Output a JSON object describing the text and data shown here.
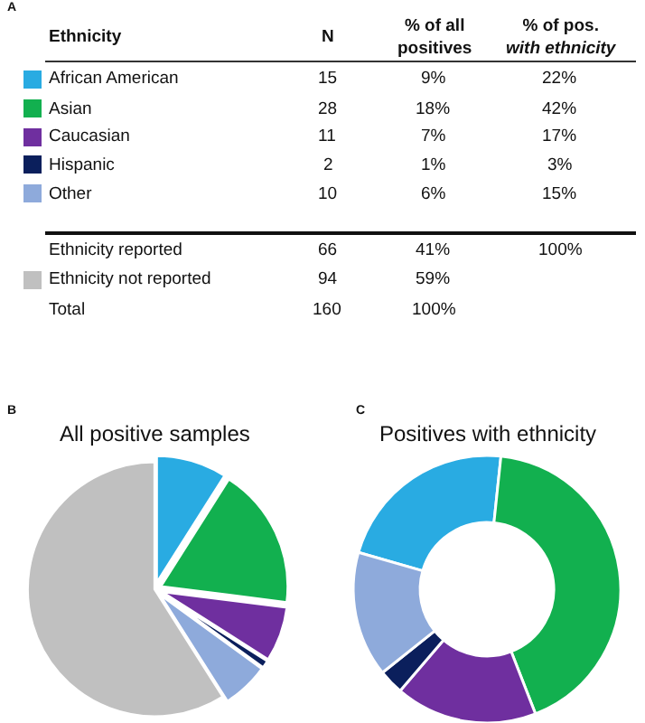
{
  "chart_data": [
    {
      "type": "other",
      "annotations": [
        "A",
        "Ethnicity",
        "N",
        "% of all\npositives",
        "% of pos.\nwith ethnicity",
        "15",
        "28",
        "11",
        "2",
        "10",
        "22%",
        "42%",
        "17%",
        "3%",
        "15%",
        "Ethnicity reported",
        "66",
        "41%",
        "100%",
        "94",
        "Total",
        "160",
        "100%"
      ]
    },
    {
      "type": "pie",
      "title": "All positive samples",
      "annotations": [
        "B"
      ],
      "legend": "left",
      "categories": [
        "African American",
        "Asian",
        "Caucasian",
        "Hispanic",
        "Other",
        "Ethnicity not reported"
      ],
      "values": [
        9,
        18,
        7,
        1,
        6,
        59
      ],
      "value_labels": [
        "9%",
        "18%",
        "7%",
        "1%",
        "6%",
        "59%"
      ],
      "colors": [
        "#29abe2",
        "#12b04f",
        "#6f2f9f",
        "#0b1f5c",
        "#8eaadb",
        "#c0c0c0"
      ]
    },
    {
      "type": "donut",
      "title": "Positives with ethnicity",
      "annotations": [
        "C"
      ],
      "categories": [
        null,
        null,
        null,
        null,
        null
      ],
      "values": [
        22,
        42,
        17,
        3,
        15
      ],
      "colors": [
        "#29abe2",
        "#12b04f",
        "#6f2f9f",
        "#0b1f5c",
        "#8eaadb"
      ]
    }
  ]
}
